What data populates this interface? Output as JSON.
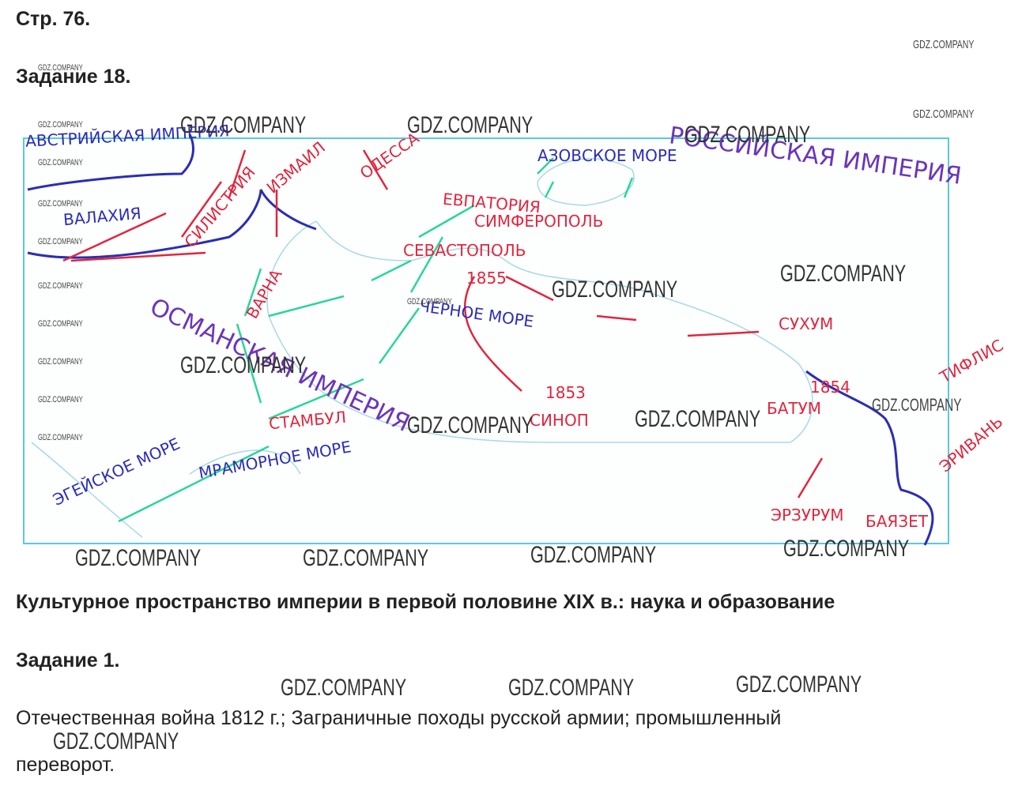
{
  "page": {
    "number": "Стр. 76."
  },
  "task18": {
    "title": "Задание 18.",
    "map": {
      "labels": [
        "Австрийская империя",
        "Валахия",
        "Силистрия",
        "Измаил",
        "Одесса",
        "Азовское море",
        "Российская империя",
        "Евпатория",
        "Симферополь",
        "Севастополь",
        "1855",
        "Черное море",
        "Варна",
        "Сухум",
        "Османская империя",
        "Стамбул",
        "Мраморное море",
        "Эгейское море",
        "1853",
        "Синоп",
        "1854",
        "Батум",
        "Тифлис",
        "Эривань",
        "Эрзурум",
        "Баязет"
      ]
    }
  },
  "section": {
    "title": "Культурное пространство империи в первой половине XIX в.: наука и образование"
  },
  "task1": {
    "title": "Задание 1.",
    "answer_lines": [
      "Отечественная война 1812 г.; Заграничные походы русской армии; промышленный",
      "переворот."
    ]
  },
  "watermarks": [
    "GDZ.COMPANY"
  ]
}
